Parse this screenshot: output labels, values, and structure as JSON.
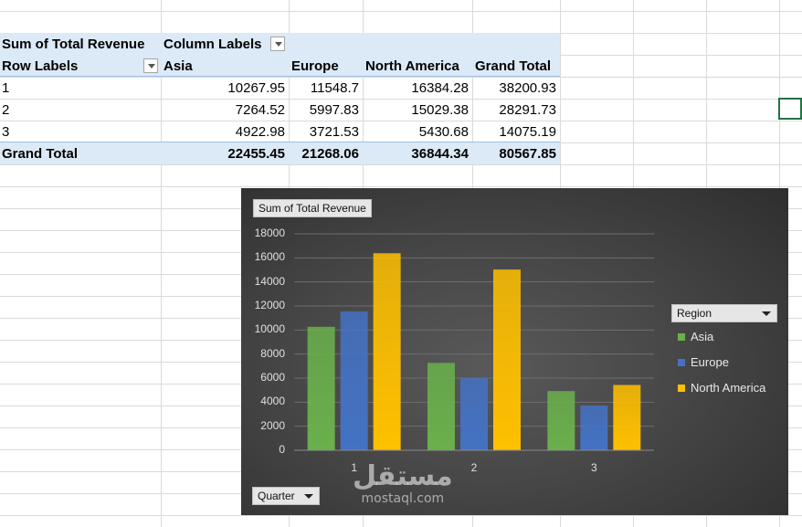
{
  "pivot": {
    "value_field": "Sum of Total Revenue",
    "column_labels": "Column Labels",
    "row_labels": "Row Labels",
    "grand_total_label": "Grand Total",
    "columns": [
      "Asia",
      "Europe",
      "North America",
      "Grand Total"
    ],
    "rows": [
      {
        "label": "1",
        "values": [
          "10267.95",
          "11548.7",
          "16384.28",
          "38200.93"
        ]
      },
      {
        "label": "2",
        "values": [
          "7264.52",
          "5997.83",
          "15029.38",
          "28291.73"
        ]
      },
      {
        "label": "3",
        "values": [
          "4922.98",
          "3721.53",
          "5430.68",
          "14075.19"
        ]
      }
    ],
    "totals": [
      "22455.45",
      "21268.06",
      "36844.34",
      "80567.85"
    ]
  },
  "chart": {
    "value_button": "Sum of Total Revenue",
    "legend_button": "Region",
    "axis_button": "Quarter",
    "watermark": {
      "arabic": "مستقل",
      "latin": "mostaql.com"
    }
  },
  "chart_data": {
    "type": "bar",
    "categories": [
      "1",
      "2",
      "3"
    ],
    "series": [
      {
        "name": "Asia",
        "color": "#6ab04c",
        "values": [
          10267.95,
          7264.52,
          4922.98
        ]
      },
      {
        "name": "Europe",
        "color": "#4472c4",
        "values": [
          11548.7,
          5997.83,
          3721.53
        ]
      },
      {
        "name": "North America",
        "color": "#ffc000",
        "values": [
          16384.28,
          15029.38,
          5430.68
        ]
      }
    ],
    "ylim": [
      0,
      18000
    ],
    "yticks": [
      0,
      2000,
      4000,
      6000,
      8000,
      10000,
      12000,
      14000,
      16000,
      18000
    ],
    "grid": true,
    "legend": "right"
  }
}
